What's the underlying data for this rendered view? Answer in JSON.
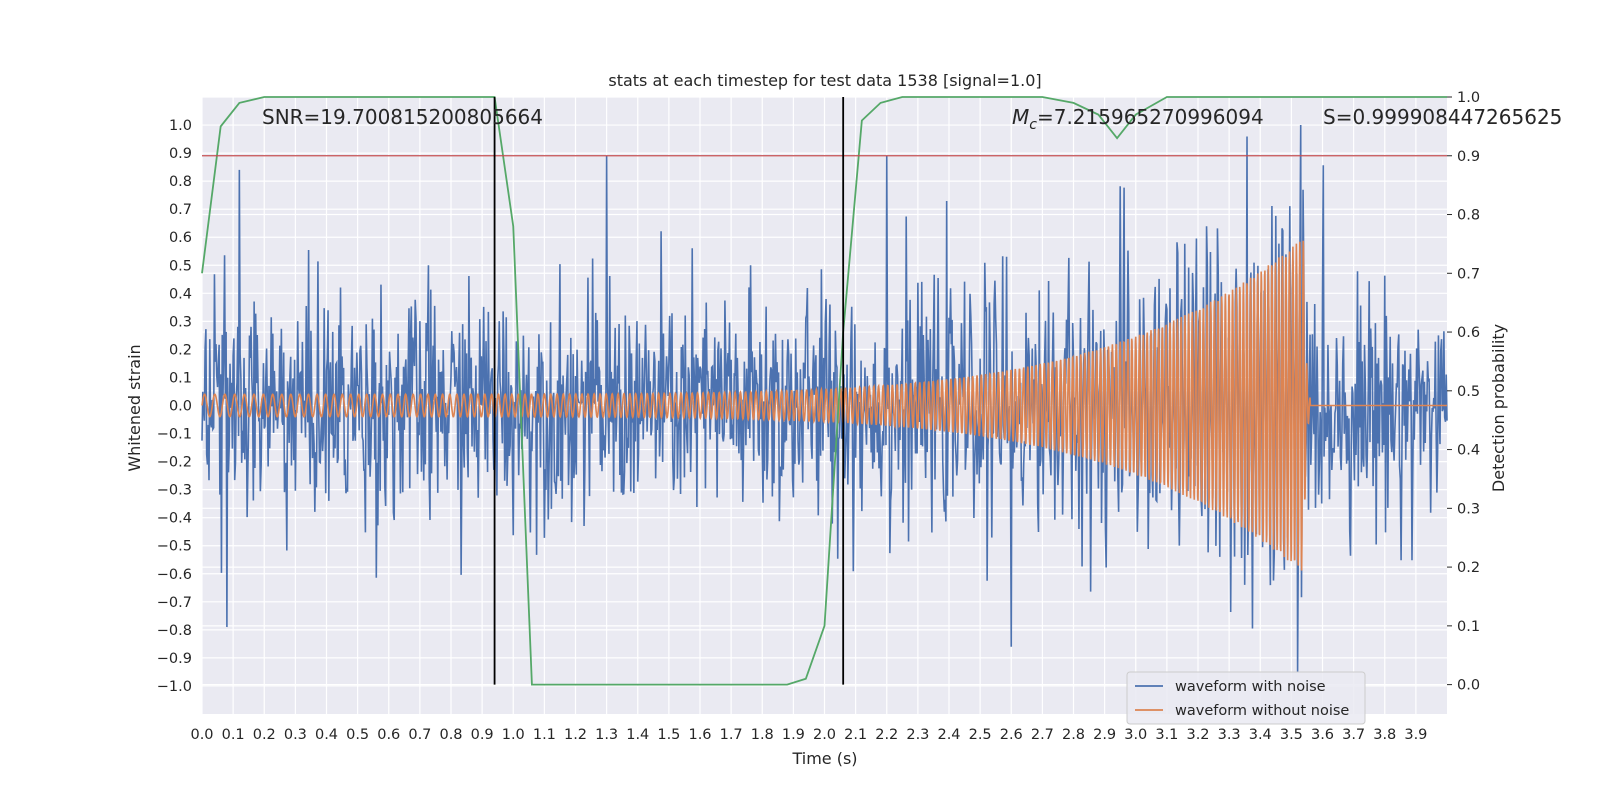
{
  "chart_data": {
    "type": "line",
    "title": "stats at each timestep for test data 1538 [signal=1.0]",
    "xlabel": "Time (s)",
    "ylabel": "Whitened strain",
    "y2label": "Detection probability",
    "xlim": [
      0.0,
      4.0
    ],
    "ylim": [
      -1.1,
      1.1
    ],
    "y2lim": [
      -0.05,
      1.0
    ],
    "x_ticks": [
      0.0,
      0.1,
      0.2,
      0.3,
      0.4,
      0.5,
      0.6,
      0.7,
      0.8,
      0.9,
      1.0,
      1.1,
      1.2,
      1.3,
      1.4,
      1.5,
      1.6,
      1.7,
      1.8,
      1.9,
      2.0,
      2.1,
      2.2,
      2.3,
      2.4,
      2.5,
      2.6,
      2.7,
      2.8,
      2.9,
      3.0,
      3.1,
      3.2,
      3.3,
      3.4,
      3.5,
      3.6,
      3.7,
      3.8,
      3.9
    ],
    "y_ticks": [
      -1.0,
      -0.9,
      -0.8,
      -0.7,
      -0.6,
      -0.5,
      -0.4,
      -0.3,
      -0.2,
      -0.1,
      0.0,
      0.1,
      0.2,
      0.3,
      0.4,
      0.5,
      0.6,
      0.7,
      0.8,
      0.9,
      1.0
    ],
    "y2_ticks": [
      0.0,
      0.1,
      0.2,
      0.3,
      0.4,
      0.5,
      0.6,
      0.7,
      0.8,
      0.9,
      1.0
    ],
    "grid": true,
    "legend_position": "bottom-right",
    "annotations": {
      "snr": "SNR=19.700815200805664",
      "mc_symbol": "M",
      "mc_sub": "c",
      "mc_value": "=7.215965270996094",
      "s": "S=0.999908447265625"
    },
    "vertical_lines": [
      0.94,
      2.06
    ],
    "threshold_y2": 0.9,
    "colors": {
      "noisy": "#4c72b0",
      "clean": "#dd8452",
      "prob": "#55a868",
      "threshold": "#c44e52",
      "vlines": "#000000",
      "plot_bg": "#eaeaf2",
      "grid": "#ffffff"
    },
    "series": [
      {
        "name": "waveform with noise",
        "color": "#4c72b0",
        "description_points": "noise-dominated whitened strain, roughly ±0.5 amplitude with spikes to about ±0.9",
        "peaks": [
          [
            0.12,
            0.84
          ],
          [
            0.08,
            -0.79
          ],
          [
            1.3,
            0.89
          ],
          [
            2.2,
            0.89
          ],
          [
            3.53,
            1.0
          ],
          [
            3.52,
            -0.95
          ],
          [
            2.6,
            -0.86
          ]
        ]
      },
      {
        "name": "waveform without noise",
        "color": "#dd8452",
        "chirp": {
          "start_amp": 0.04,
          "end_amp": 0.6,
          "merger_time": 3.54,
          "start_freq": 30,
          "end_freq": 90
        }
      },
      {
        "name": "Detection probability",
        "color": "#55a868",
        "x": [
          0.0,
          0.06,
          0.12,
          0.2,
          0.3,
          0.5,
          0.7,
          0.94,
          1.0,
          1.06,
          1.12,
          1.3,
          1.6,
          1.88,
          1.94,
          2.0,
          2.06,
          2.12,
          2.18,
          2.25,
          2.5,
          2.7,
          2.8,
          2.88,
          2.94,
          3.0,
          3.1,
          3.2,
          3.5,
          3.8,
          4.0
        ],
        "y": [
          0.7,
          0.95,
          0.99,
          1.0,
          1.0,
          1.0,
          1.0,
          1.0,
          0.78,
          0.0,
          0.0,
          0.0,
          0.0,
          0.0,
          0.01,
          0.1,
          0.6,
          0.96,
          0.99,
          1.0,
          1.0,
          1.0,
          0.99,
          0.97,
          0.93,
          0.97,
          1.0,
          1.0,
          1.0,
          1.0,
          1.0
        ]
      }
    ]
  }
}
